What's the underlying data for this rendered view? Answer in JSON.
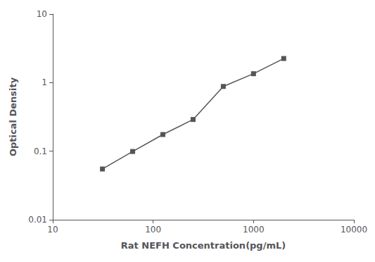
{
  "chart_data": {
    "type": "line",
    "x": [
      31.25,
      62.5,
      125,
      250,
      500,
      1000,
      2000
    ],
    "values": [
      0.055,
      0.099,
      0.175,
      0.29,
      0.88,
      1.35,
      2.25
    ],
    "xlabel": "Rat NEFH Concentration(pg/mL)",
    "ylabel": "Optical Density",
    "xlim": [
      10,
      10000
    ],
    "ylim": [
      0.01,
      10
    ],
    "xticks": [
      10,
      100,
      1000,
      10000
    ],
    "yticks": [
      0.01,
      0.1,
      1,
      10
    ],
    "log": true,
    "grid": false,
    "color": "#555555",
    "marker": "square"
  }
}
